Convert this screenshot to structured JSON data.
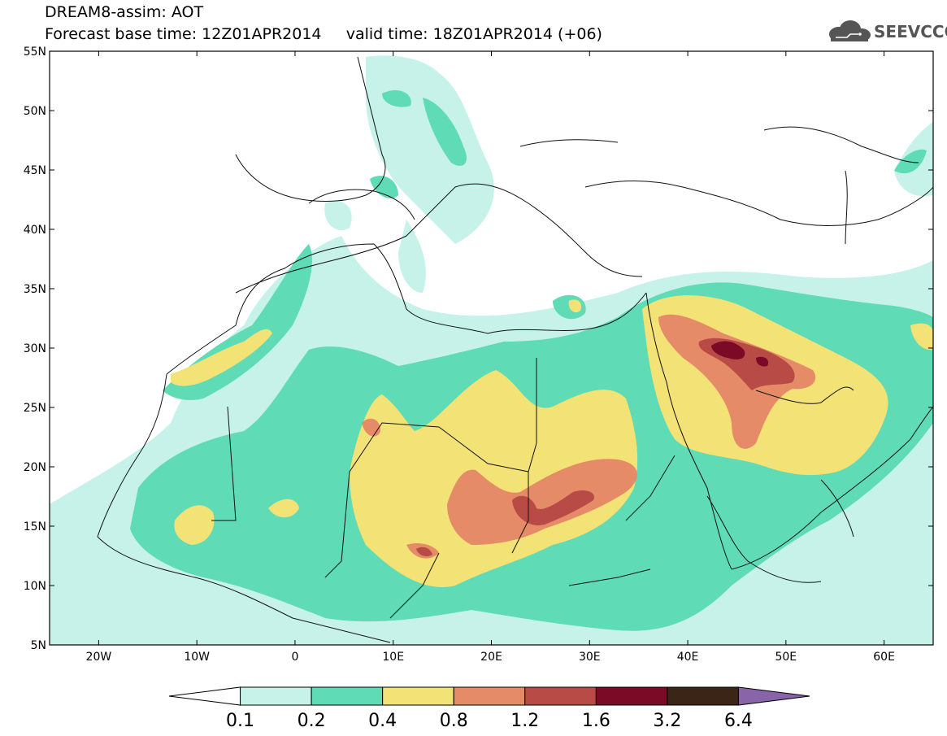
{
  "header": {
    "title": "DREAM8-assim: AOT",
    "subtitle": "Forecast base time: 12Z01APR2014     valid time: 18Z01APR2014 (+06)"
  },
  "logo": {
    "text": "SEEVCCC",
    "icon": "cloud-logo-icon"
  },
  "map": {
    "lat_range": [
      5,
      55
    ],
    "lon_range": [
      -25,
      65
    ],
    "lat_labels": [
      "55N",
      "50N",
      "45N",
      "40N",
      "35N",
      "30N",
      "25N",
      "20N",
      "15N",
      "10N",
      "5N"
    ],
    "lat_values": [
      55,
      50,
      45,
      40,
      35,
      30,
      25,
      20,
      15,
      10,
      5
    ],
    "lon_labels": [
      "20W",
      "10W",
      "0",
      "10E",
      "20E",
      "30E",
      "40E",
      "50E",
      "60E"
    ],
    "lon_values": [
      -20,
      -10,
      0,
      10,
      20,
      30,
      40,
      50,
      60
    ],
    "grid": "none",
    "colors": {
      "0.1-0.2": "#c6f2ea",
      "0.2-0.4": "#5fdbb5",
      "0.4-0.8": "#f3e276",
      "0.8-1.2": "#e68b68",
      "1.2-1.6": "#b84b45",
      "1.6-3.2": "#7b0a27",
      "3.2-6.4": "#3a2516",
      "above-6.4": "#8a64a8"
    }
  },
  "colorbar": {
    "labels": [
      "0.1",
      "0.2",
      "0.4",
      "0.8",
      "1.2",
      "1.6",
      "3.2",
      "6.4"
    ],
    "colors": [
      "#ffffff",
      "#c6f2ea",
      "#5fdbb5",
      "#f3e276",
      "#e68b68",
      "#b84b45",
      "#7b0a27",
      "#3a2516",
      "#8a64a8"
    ]
  }
}
